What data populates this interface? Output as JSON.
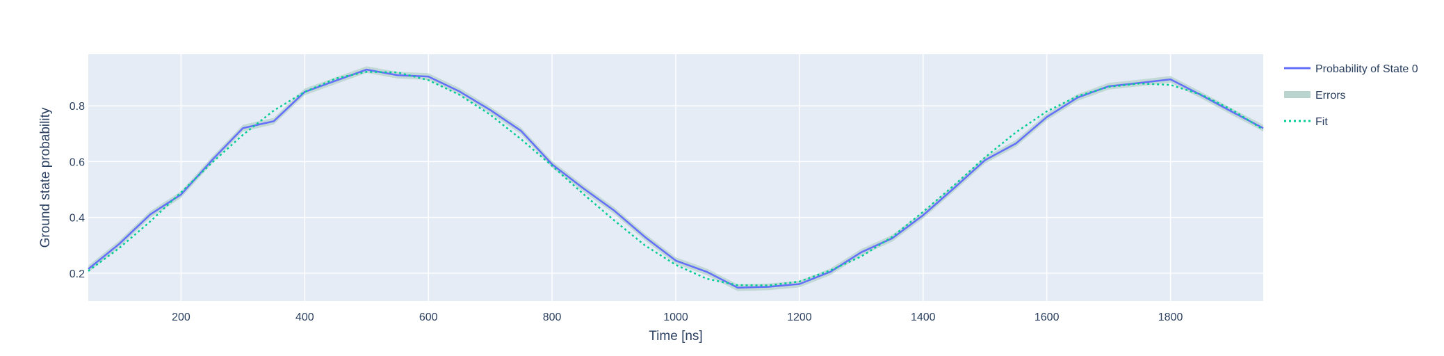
{
  "chart_data": {
    "type": "line",
    "title": "",
    "xlabel": "Time [ns]",
    "ylabel": "Ground state probability",
    "xlim": [
      50,
      1950
    ],
    "ylim": [
      0.1,
      0.985
    ],
    "x_ticks": [
      200,
      400,
      600,
      800,
      1000,
      1200,
      1400,
      1600,
      1800
    ],
    "y_ticks": [
      0.2,
      0.4,
      0.6,
      0.8
    ],
    "grid": true,
    "legend_position": "right",
    "colors": {
      "plot_background": "#e5ecf6",
      "grid": "#ffffff",
      "probability": "#636efa",
      "errors": "#b9d4ce",
      "fit": "#00cc96",
      "text": "#2a3f5f"
    },
    "series": [
      {
        "name": "Probability of State 0",
        "style": "solid",
        "x": [
          50,
          100,
          150,
          200,
          250,
          300,
          350,
          400,
          450,
          500,
          550,
          600,
          650,
          700,
          750,
          800,
          850,
          900,
          950,
          1000,
          1050,
          1100,
          1150,
          1200,
          1250,
          1300,
          1350,
          1400,
          1450,
          1500,
          1550,
          1600,
          1650,
          1700,
          1750,
          1800,
          1850,
          1900,
          1950
        ],
        "y": [
          0.215,
          0.305,
          0.41,
          0.482,
          0.605,
          0.72,
          0.745,
          0.85,
          0.89,
          0.93,
          0.91,
          0.905,
          0.852,
          0.785,
          0.71,
          0.59,
          0.505,
          0.425,
          0.33,
          0.245,
          0.205,
          0.148,
          0.151,
          0.161,
          0.205,
          0.275,
          0.325,
          0.408,
          0.505,
          0.605,
          0.665,
          0.76,
          0.83,
          0.87,
          0.882,
          0.895,
          0.838,
          0.778,
          0.72
        ]
      },
      {
        "name": "Errors",
        "style": "band",
        "x": [
          50,
          100,
          150,
          200,
          250,
          300,
          350,
          400,
          450,
          500,
          550,
          600,
          650,
          700,
          750,
          800,
          850,
          900,
          950,
          1000,
          1050,
          1100,
          1150,
          1200,
          1250,
          1300,
          1350,
          1400,
          1450,
          1500,
          1550,
          1600,
          1650,
          1700,
          1750,
          1800,
          1850,
          1900,
          1950
        ],
        "y": [
          0.215,
          0.305,
          0.41,
          0.482,
          0.605,
          0.72,
          0.745,
          0.85,
          0.89,
          0.93,
          0.91,
          0.905,
          0.852,
          0.785,
          0.71,
          0.59,
          0.505,
          0.425,
          0.33,
          0.245,
          0.205,
          0.148,
          0.151,
          0.161,
          0.205,
          0.275,
          0.325,
          0.408,
          0.505,
          0.605,
          0.665,
          0.76,
          0.83,
          0.87,
          0.882,
          0.895,
          0.838,
          0.778,
          0.72
        ],
        "error": 0.012
      },
      {
        "name": "Fit",
        "style": "dotted",
        "x": [
          50,
          100,
          150,
          200,
          250,
          300,
          350,
          400,
          450,
          500,
          550,
          600,
          650,
          700,
          750,
          800,
          850,
          900,
          950,
          1000,
          1050,
          1100,
          1150,
          1200,
          1250,
          1300,
          1350,
          1400,
          1450,
          1500,
          1550,
          1600,
          1650,
          1700,
          1750,
          1800,
          1850,
          1900,
          1950
        ],
        "y": [
          0.208,
          0.29,
          0.385,
          0.49,
          0.596,
          0.696,
          0.783,
          0.85,
          0.898,
          0.922,
          0.92,
          0.892,
          0.84,
          0.768,
          0.68,
          0.585,
          0.485,
          0.39,
          0.3,
          0.23,
          0.18,
          0.157,
          0.156,
          0.17,
          0.21,
          0.26,
          0.33,
          0.42,
          0.515,
          0.615,
          0.705,
          0.78,
          0.835,
          0.868,
          0.88,
          0.875,
          0.84,
          0.785,
          0.715
        ]
      }
    ]
  }
}
